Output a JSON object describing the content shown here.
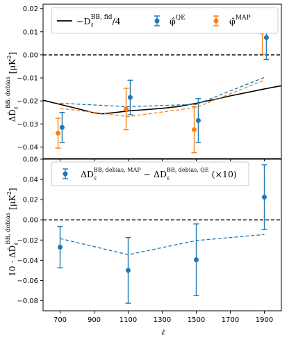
{
  "chart_data": [
    {
      "type": "scatter",
      "ylabel_html": "ΔD̂<tspan baseline-shift=\"sub\" font-size=\"9\">ℓ</tspan><tspan baseline-shift=\"super\" font-size=\"9\">BB, debias</tspan> [μK²]",
      "ylabel_parts": [
        "ΔD̂",
        "ℓ",
        "BB, debias",
        " [μK",
        "2",
        "]"
      ],
      "xlim": [
        600,
        2000
      ],
      "ylim": [
        -0.045,
        0.022
      ],
      "yticks": [
        -0.04,
        -0.03,
        -0.02,
        -0.01,
        0.0,
        0.01,
        0.02
      ],
      "ytick_labels": [
        "−0.04",
        "−0.03",
        "−0.02",
        "−0.01",
        "0.00",
        "0.01",
        "0.02"
      ],
      "grid": false,
      "legend_position": "top",
      "legend": [
        {
          "label": "−D",
          "sub": "ℓ",
          "sup": "BB, fid",
          "suffix": "/4",
          "color": "#000000"
        },
        {
          "label": "φ̂",
          "sup": "QE",
          "color": "#1f77b4"
        },
        {
          "label": "φ̂",
          "sup": "MAP",
          "color": "#ff7f0e"
        }
      ],
      "reference_line": 0.0,
      "fid_curve": {
        "x": [
          600,
          700,
          800,
          900,
          950,
          1000,
          1050,
          1100,
          1200,
          1300,
          1400,
          1500,
          1600,
          1700,
          1800,
          1900,
          2000
        ],
        "y": [
          -0.0197,
          -0.0215,
          -0.0233,
          -0.0252,
          -0.0256,
          -0.0252,
          -0.0248,
          -0.0243,
          -0.0238,
          -0.0232,
          -0.0224,
          -0.021,
          -0.0195,
          -0.0178,
          -0.0163,
          -0.0148,
          -0.0134
        ]
      },
      "series": [
        {
          "name": "QE",
          "color": "#1f77b4",
          "x": [
            712,
            1112,
            1512,
            1912
          ],
          "y": [
            -0.0315,
            -0.0185,
            -0.0285,
            0.0075
          ],
          "yerr": [
            0.0065,
            0.0075,
            0.0095,
            0.0095
          ],
          "dashed_x": [
            700,
            1100,
            1500,
            1900
          ],
          "dashed_y": [
            -0.021,
            -0.0225,
            -0.0215,
            -0.0098
          ]
        },
        {
          "name": "MAP",
          "color": "#ff7f0e",
          "x": [
            688,
            1088,
            1488,
            1888
          ],
          "y": [
            -0.034,
            -0.0235,
            -0.0325,
            0.0098
          ],
          "yerr": [
            0.0065,
            0.009,
            0.01,
            0.0095
          ],
          "dashed_x": [
            700,
            1100,
            1500,
            1900
          ],
          "dashed_y": [
            -0.0232,
            -0.0268,
            -0.0228,
            -0.011
          ]
        }
      ]
    },
    {
      "type": "scatter",
      "ylabel_parts": [
        "10 · ΔD̂",
        "ℓ",
        "BB, debias",
        " [μK",
        "2",
        "]"
      ],
      "xlabel": "ℓ",
      "xlim": [
        600,
        2000
      ],
      "xticks": [
        700,
        900,
        1100,
        1300,
        1500,
        1700,
        1900
      ],
      "ylim": [
        -0.09,
        0.06
      ],
      "yticks": [
        -0.08,
        -0.06,
        -0.04,
        -0.02,
        0.0,
        0.02,
        0.04,
        0.06
      ],
      "ytick_labels": [
        "−0.08",
        "−0.06",
        "−0.04",
        "−0.02",
        "0.00",
        "0.02",
        "0.04",
        "0.06"
      ],
      "grid": false,
      "legend_position": "top",
      "legend": [
        {
          "label": "ΔD",
          "sub": "ℓ",
          "sup": "BB, debias, MAP",
          "mid": " − ΔD",
          "sub2": "ℓ",
          "sup2": "BB, debias, QE",
          "suffix": " (×10)",
          "color": "#1f77b4"
        }
      ],
      "reference_line": 0.0,
      "series": [
        {
          "name": "MAP − QE (×10)",
          "color": "#1f77b4",
          "x": [
            700,
            1100,
            1500,
            1900
          ],
          "y": [
            -0.027,
            -0.05,
            -0.0395,
            0.0225
          ],
          "yerr": [
            0.0205,
            0.0325,
            0.0355,
            0.032
          ],
          "dashed_x": [
            700,
            1100,
            1500,
            1900
          ],
          "dashed_y": [
            -0.0185,
            -0.0345,
            -0.0205,
            -0.0145
          ]
        }
      ]
    }
  ]
}
